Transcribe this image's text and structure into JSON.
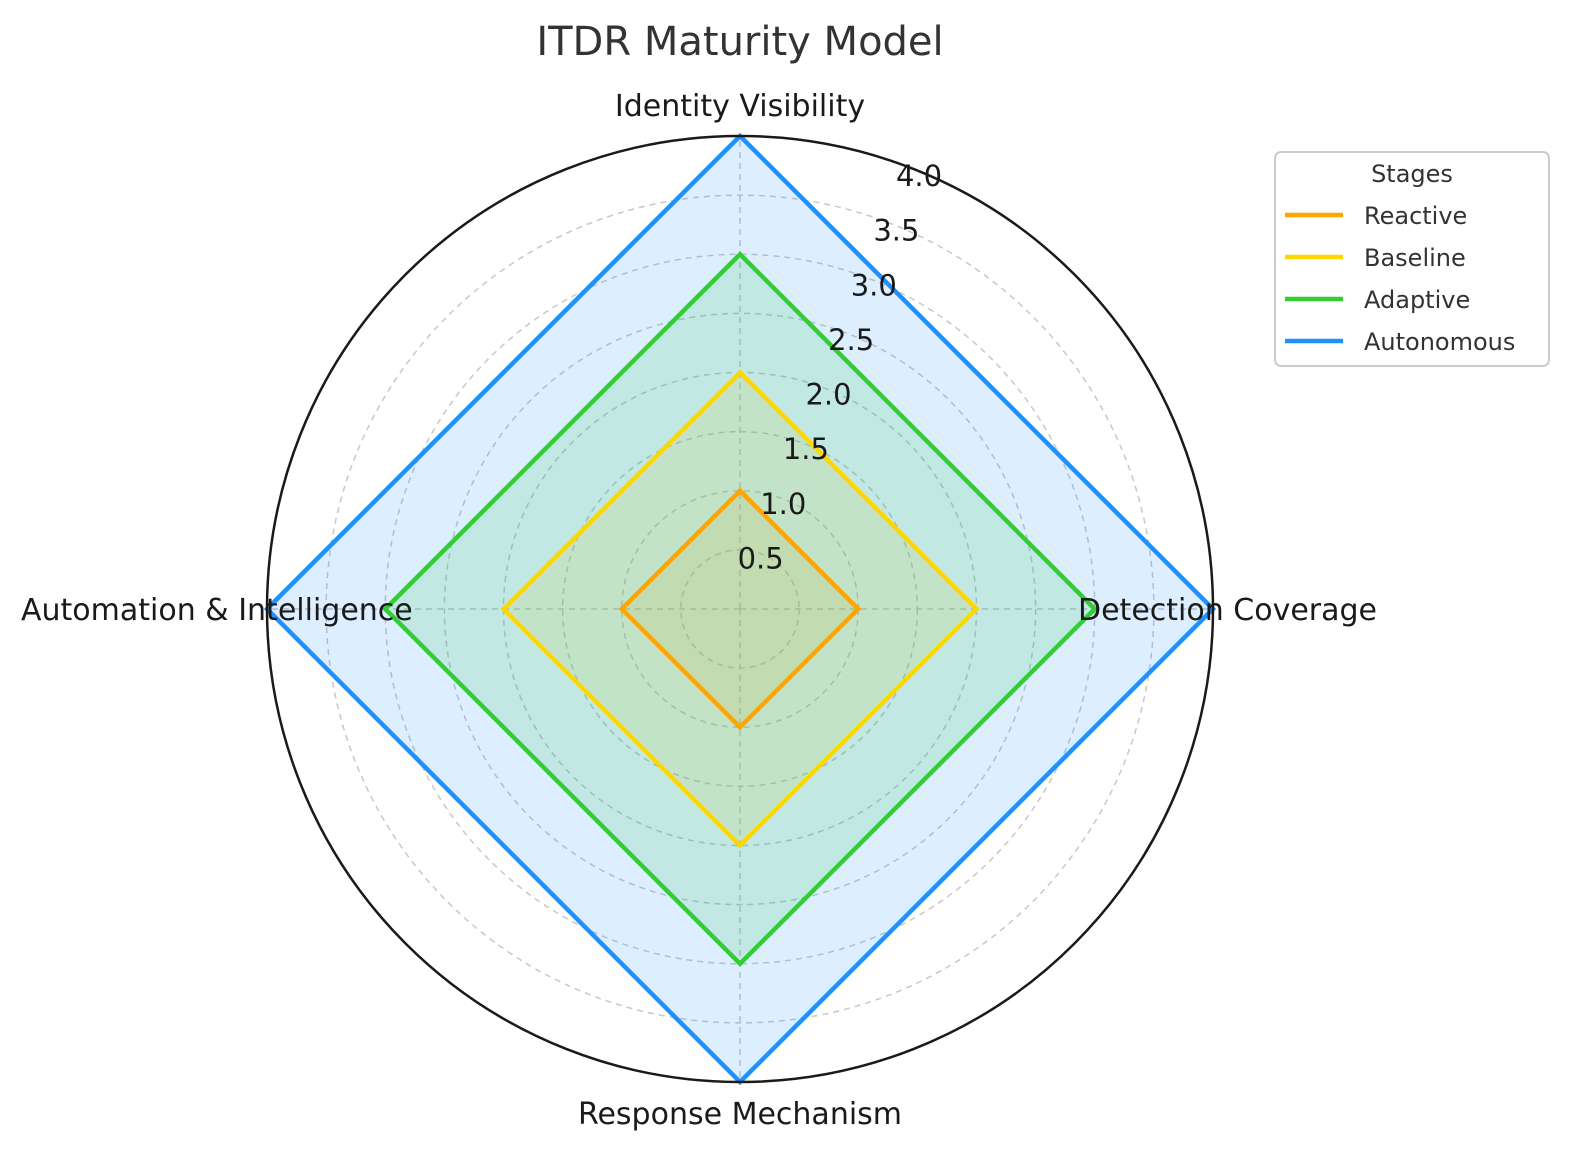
{
  "chart_data": {
    "type": "radar",
    "title": "ITDR Maturity Model",
    "axes": [
      "Identity Visibility",
      "Detection Coverage",
      "Response Mechanism",
      "Automation & Intelligence"
    ],
    "rlim": [
      0,
      4
    ],
    "r_ticks": [
      "0.5",
      "1.0",
      "1.5",
      "2.0",
      "2.5",
      "3.0",
      "3.5",
      "4.0"
    ],
    "grid": true,
    "legend": {
      "title": "Stages",
      "placement": "top-right, outside"
    },
    "series": [
      {
        "name": "Reactive",
        "values": [
          1,
          1,
          1,
          1
        ],
        "color": "#FFA500"
      },
      {
        "name": "Baseline",
        "values": [
          2,
          2,
          2,
          2
        ],
        "color": "#FFD700"
      },
      {
        "name": "Adaptive",
        "values": [
          3,
          3,
          3,
          3
        ],
        "color": "#32CD32"
      },
      {
        "name": "Autonomous",
        "values": [
          4,
          4,
          4,
          4
        ],
        "color": "#1E90FF"
      }
    ]
  }
}
